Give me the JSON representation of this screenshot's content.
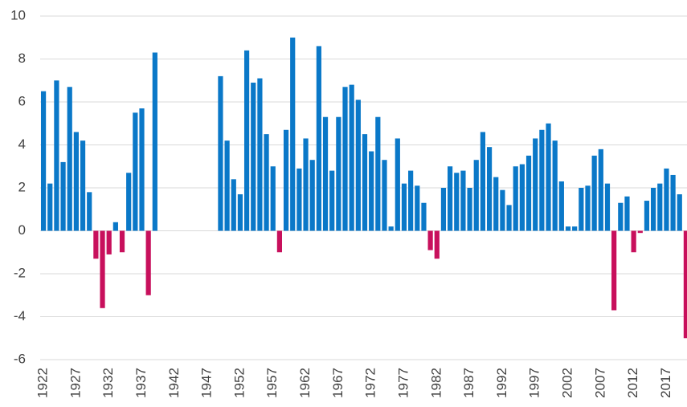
{
  "chart_data": {
    "type": "bar",
    "x": [
      1922,
      1923,
      1924,
      1925,
      1926,
      1927,
      1928,
      1929,
      1930,
      1931,
      1932,
      1933,
      1934,
      1935,
      1936,
      1937,
      1938,
      1939,
      1940,
      1941,
      1942,
      1943,
      1944,
      1945,
      1946,
      1947,
      1948,
      1949,
      1950,
      1951,
      1952,
      1953,
      1954,
      1955,
      1956,
      1957,
      1958,
      1959,
      1960,
      1961,
      1962,
      1963,
      1964,
      1965,
      1966,
      1967,
      1968,
      1969,
      1970,
      1971,
      1972,
      1973,
      1974,
      1975,
      1976,
      1977,
      1978,
      1979,
      1980,
      1981,
      1982,
      1983,
      1984,
      1985,
      1986,
      1987,
      1988,
      1989,
      1990,
      1991,
      1992,
      1993,
      1994,
      1995,
      1996,
      1997,
      1998,
      1999,
      2000,
      2001,
      2002,
      2003,
      2004,
      2005,
      2006,
      2007,
      2008,
      2009,
      2010,
      2011,
      2012,
      2013,
      2014,
      2015,
      2016,
      2017,
      2018,
      2019,
      2020
    ],
    "values": [
      6.5,
      2.2,
      7.0,
      3.2,
      6.7,
      4.6,
      4.2,
      1.8,
      -1.3,
      -3.6,
      -1.1,
      0.4,
      -1.0,
      2.7,
      5.5,
      5.7,
      -3.0,
      8.3,
      null,
      null,
      null,
      null,
      null,
      null,
      null,
      null,
      null,
      7.2,
      4.2,
      2.4,
      1.7,
      8.4,
      6.9,
      7.1,
      4.5,
      3.0,
      -1.0,
      4.7,
      9.0,
      2.9,
      4.3,
      3.3,
      8.6,
      5.3,
      2.8,
      5.3,
      6.7,
      6.8,
      6.1,
      4.5,
      3.7,
      5.3,
      3.3,
      0.2,
      4.3,
      2.2,
      2.8,
      2.1,
      1.3,
      -0.9,
      -1.3,
      2.0,
      3.0,
      2.7,
      2.8,
      2.0,
      3.3,
      4.6,
      3.9,
      2.5,
      1.9,
      1.2,
      3.0,
      3.1,
      3.5,
      4.3,
      4.7,
      5.0,
      4.2,
      2.3,
      0.2,
      0.2,
      2.0,
      2.1,
      3.5,
      3.8,
      2.2,
      -3.7,
      1.3,
      1.6,
      -1.0,
      -0.1,
      1.4,
      2.0,
      2.2,
      2.9,
      2.6,
      1.7,
      -5.0
    ],
    "color": "#0a78c8",
    "negative_color": "#c8105c",
    "xlim": [
      1921.5,
      2020.5
    ],
    "xticks": [
      1922,
      1927,
      1932,
      1937,
      1942,
      1947,
      1952,
      1957,
      1962,
      1967,
      1972,
      1977,
      1982,
      1987,
      1992,
      1997,
      2002,
      2007,
      2012,
      2017
    ],
    "ylim": [
      -6,
      10
    ],
    "yticks": [
      -6,
      -4,
      -2,
      0,
      2,
      4,
      6,
      8,
      10
    ],
    "grid": true
  }
}
